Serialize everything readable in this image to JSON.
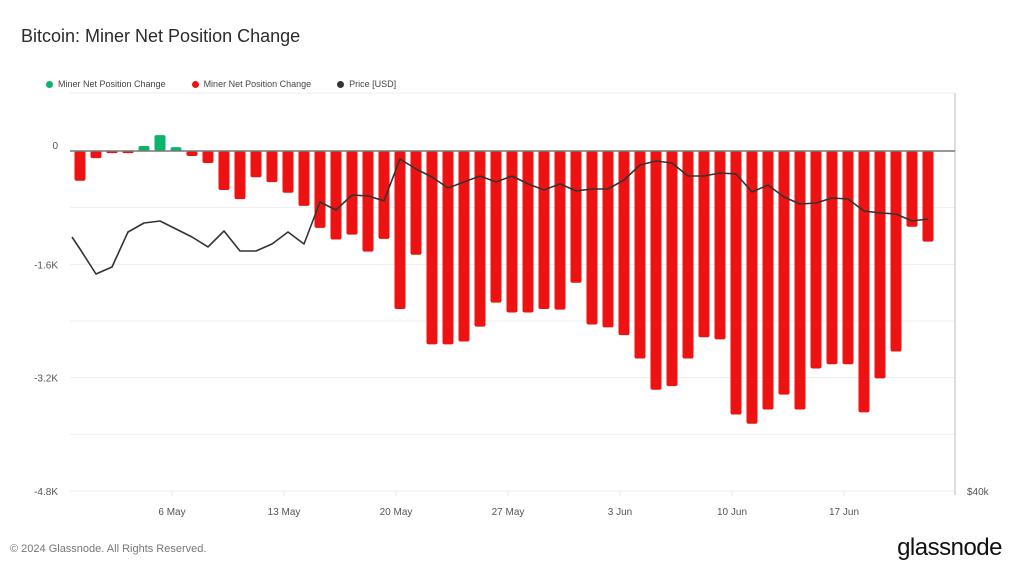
{
  "header": {
    "title": "Bitcoin: Miner Net Position Change"
  },
  "footer": {
    "copyright": "© 2024 Glassnode. All Rights Reserved.",
    "logo": "glassnode"
  },
  "colors": {
    "positive": "#0bb36b",
    "negative": "#ee1212",
    "price": "#333333",
    "grid": "#eeeeee"
  },
  "chart_data": {
    "type": "bar",
    "title": "Bitcoin: Miner Net Position Change",
    "legend": [
      {
        "label": "Miner Net Position Change",
        "color": "#0bb36b"
      },
      {
        "label": "Miner Net Position Change",
        "color": "#ee1212"
      },
      {
        "label": "Price [USD]",
        "color": "#333333"
      }
    ],
    "legend_placement": "top-left",
    "start_date": "2024-04-30",
    "x_ticks": [
      "6 May",
      "13 May",
      "20 May",
      "27 May",
      "3 Jun",
      "10 Jun",
      "17 Jun"
    ],
    "x_tick_day_index": [
      6,
      13,
      20,
      27,
      34,
      41,
      48
    ],
    "y_ticks": [
      {
        "value": 0,
        "label": "0"
      },
      {
        "value": -1600,
        "label": "-1.6K"
      },
      {
        "value": -3200,
        "label": "-3.2K"
      },
      {
        "value": -4800,
        "label": "-4.8K"
      }
    ],
    "ylim": [
      -4800,
      800
    ],
    "grid": true,
    "y2_ticks": [
      {
        "value": 40000,
        "label": "$40k"
      }
    ],
    "y2lim": [
      40000,
      72000
    ],
    "series": [
      {
        "name": "Miner Net Position Change",
        "values": [
          -420,
          -100,
          -30,
          -30,
          70,
          225,
          55,
          -70,
          -170,
          -550,
          -680,
          -370,
          -440,
          -590,
          -775,
          -1085,
          -1250,
          -1180,
          -1420,
          -1240,
          -2230,
          -1465,
          -2730,
          -2730,
          -2690,
          -2480,
          -2140,
          -2280,
          -2280,
          -2230,
          -2240,
          -1860,
          -2450,
          -2490,
          -2600,
          -2930,
          -3370,
          -3320,
          -2930,
          -2630,
          -2660,
          -3720,
          -3850,
          -3650,
          -3440,
          -3650,
          -3070,
          -3010,
          -3010,
          -3690,
          -3210,
          -2830,
          -1070,
          -1280
        ]
      },
      {
        "name": "Price [USD]",
        "type": "line",
        "values": [
          62780,
          60420,
          61080,
          64380,
          65220,
          65410,
          64660,
          63910,
          62970,
          64470,
          62590,
          62590,
          63250,
          64380,
          63250,
          67200,
          66450,
          67860,
          67770,
          67300,
          71250,
          70310,
          69550,
          68520,
          69080,
          69650,
          69080,
          69650,
          68900,
          68330,
          68900,
          68240,
          68420,
          68420,
          69270,
          70680,
          71060,
          70870,
          69650,
          69650,
          69930,
          69840,
          68140,
          68800,
          67670,
          67010,
          67110,
          67580,
          67480,
          66350,
          66170,
          66070,
          65410,
          65600
        ]
      }
    ]
  }
}
